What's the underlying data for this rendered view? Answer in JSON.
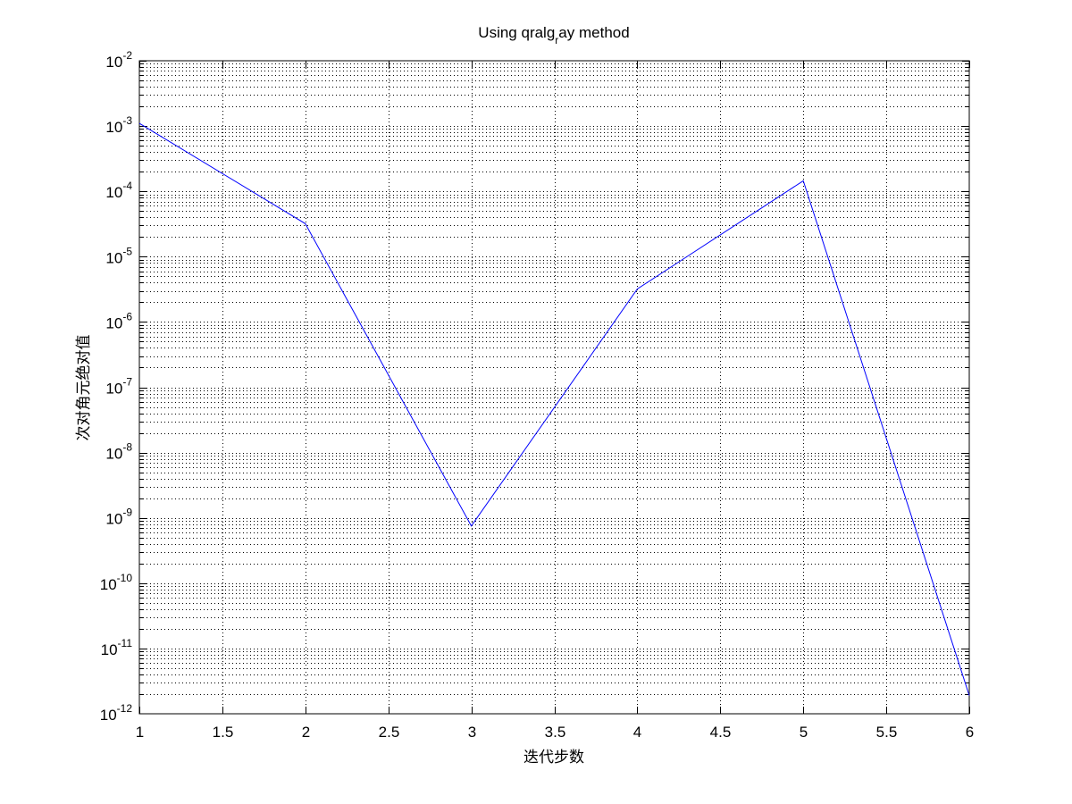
{
  "chart_data": {
    "type": "line",
    "title": {
      "main": "Using qralg",
      "subscript": "r",
      "rest": "ay method"
    },
    "xlabel": "迭代步数",
    "ylabel": "次对角元绝对值",
    "xlim": [
      1,
      6
    ],
    "ylim": [
      1e-12,
      0.01
    ],
    "yscale": "log",
    "grid": true,
    "x_ticks": [
      "1",
      "1.5",
      "2",
      "2.5",
      "3",
      "3.5",
      "4",
      "4.5",
      "5",
      "5.5",
      "6"
    ],
    "y_ticks": [
      {
        "base": "10",
        "exp": "-2"
      },
      {
        "base": "10",
        "exp": "-3"
      },
      {
        "base": "10",
        "exp": "-4"
      },
      {
        "base": "10",
        "exp": "-5"
      },
      {
        "base": "10",
        "exp": "-6"
      },
      {
        "base": "10",
        "exp": "-7"
      },
      {
        "base": "10",
        "exp": "-8"
      },
      {
        "base": "10",
        "exp": "-9"
      },
      {
        "base": "10",
        "exp": "-10"
      },
      {
        "base": "10",
        "exp": "-11"
      },
      {
        "base": "10",
        "exp": "-12"
      }
    ],
    "series": [
      {
        "color": "#0000ff",
        "x": [
          1,
          2,
          3,
          4,
          5,
          6
        ],
        "y": [
          0.0011,
          3.2e-05,
          7.5e-10,
          3.2e-06,
          0.000145,
          1.9e-12
        ]
      }
    ]
  }
}
